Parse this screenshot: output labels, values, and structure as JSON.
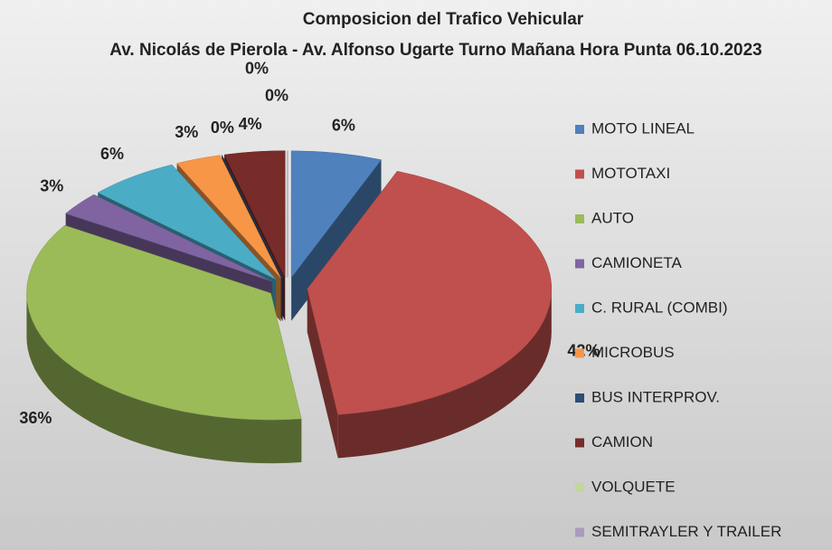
{
  "chart_data": {
    "type": "pie",
    "title": "Composicion del Trafico Vehicular",
    "subtitle": "Av. Nicolás de Pierola - Av. Alfonso Ugarte Turno Mañana Hora Punta 06.10.2023",
    "categories": [
      "MOTO LINEAL",
      "MOTOTAXI",
      "AUTO",
      "CAMIONETA",
      "C. RURAL (COMBI)",
      "MICROBUS",
      "BUS INTERPROV.",
      "CAMION",
      "VOLQUETE",
      "SEMITRAYLER Y TRAILER"
    ],
    "values": [
      6,
      42,
      36,
      3,
      6,
      3,
      0,
      4,
      0,
      0
    ],
    "value_labels": [
      "6%",
      "42%",
      "36%",
      "3%",
      "6%",
      "3%",
      "0%",
      "4%",
      "0%",
      "0%"
    ],
    "colors": [
      "#4f81bd",
      "#c0504d",
      "#9bbb59",
      "#8064a2",
      "#4bacc6",
      "#f79646",
      "#2c4d75",
      "#772c2a",
      "#c3d69b",
      "#a99bbd"
    ],
    "legend": "right"
  }
}
